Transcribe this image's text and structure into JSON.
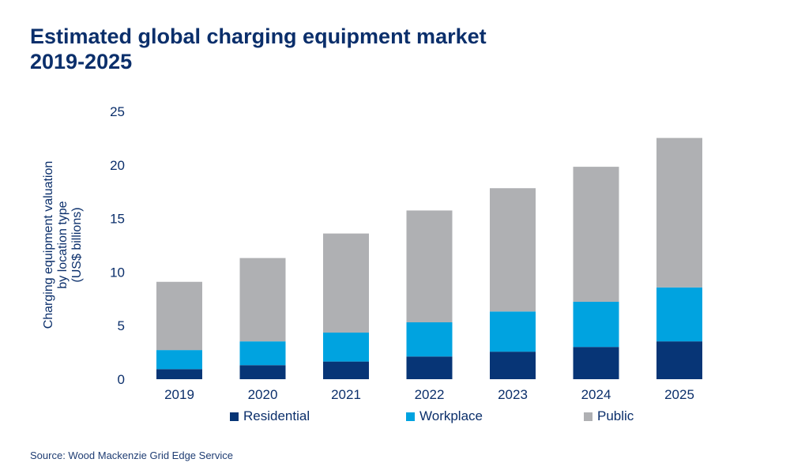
{
  "title_line1": "Estimated global charging equipment market",
  "title_line2": "2019-2025",
  "source": "Source: Wood Mackenzie Grid Edge Service",
  "chart_data": {
    "type": "bar",
    "stacked": true,
    "title": "Estimated global charging equipment market 2019-2025",
    "ylabel_lines": [
      "Charging equipment valuation",
      "by location type",
      "(US$ billions)"
    ],
    "xlabel": "",
    "ylim": [
      0,
      25
    ],
    "yticks": [
      0,
      5,
      10,
      15,
      20,
      25
    ],
    "grid": false,
    "legend_position": "bottom",
    "categories": [
      "2019",
      "2020",
      "2021",
      "2022",
      "2023",
      "2024",
      "2025"
    ],
    "series": [
      {
        "name": "Residential",
        "color": "#073576",
        "values": [
          0.94,
          1.31,
          1.65,
          2.12,
          2.57,
          3.01,
          3.53
        ]
      },
      {
        "name": "Workplace",
        "color": "#00a3e0",
        "values": [
          1.78,
          2.22,
          2.7,
          3.19,
          3.75,
          4.22,
          5.04
        ]
      },
      {
        "name": "Public",
        "color": "#afb0b3",
        "values": [
          6.37,
          7.78,
          9.25,
          10.44,
          11.51,
          12.6,
          13.95
        ]
      }
    ]
  }
}
